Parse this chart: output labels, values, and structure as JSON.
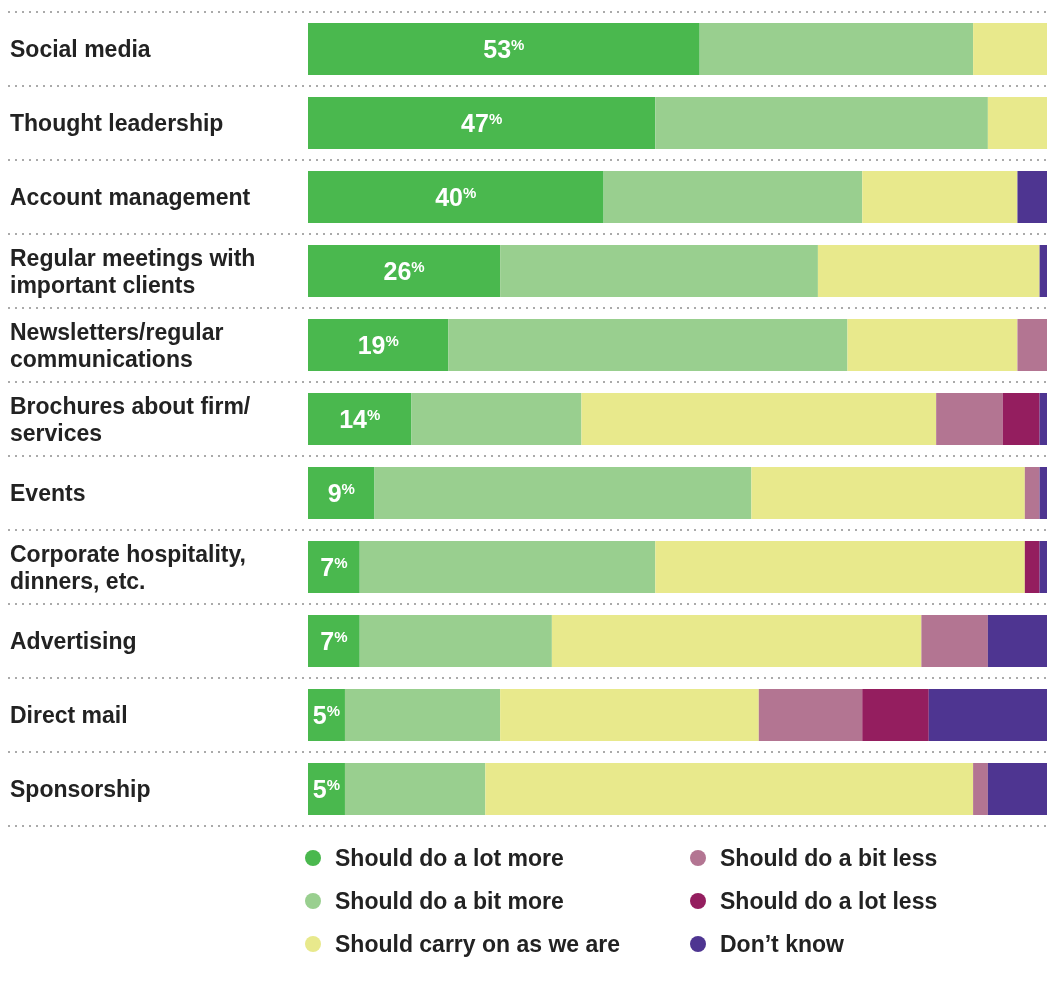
{
  "chart_data": {
    "type": "bar",
    "orientation": "horizontal",
    "stacked": true,
    "legend": "bottom",
    "xlim": [
      0,
      100
    ],
    "categories": [
      "Social media",
      "Thought leadership",
      "Account management",
      "Regular meetings with important clients",
      "Newsletters/regular communications",
      "Brochures about firm/ services",
      "Events",
      "Corporate hospitality, dinners, etc.",
      "Advertising",
      "Direct mail",
      "Sponsorship"
    ],
    "series": [
      {
        "name": "Should do a lot more",
        "color": "#4ab84e",
        "values": [
          53,
          47,
          40,
          26,
          19,
          14,
          9,
          7,
          7,
          5,
          5
        ],
        "value_labels": [
          "53$^{%}$",
          "47$^{%}$",
          "40$^{%}$",
          "26$^{%}$",
          "19$^{%}$",
          "14$^{%}$",
          "9$^{%}$",
          "7$^{%}$",
          "7$^{%}$",
          "5$^{%}$",
          "5$^{%}$"
        ]
      },
      {
        "name": "Should do a bit more",
        "color": "#99cf8f",
        "values": [
          37,
          45,
          35,
          43,
          54,
          23,
          51,
          40,
          26,
          21,
          19
        ]
      },
      {
        "name": "Should carry on as we are",
        "color": "#e8e98c",
        "values": [
          10,
          8,
          21,
          30,
          23,
          48,
          37,
          50,
          50,
          35,
          66
        ]
      },
      {
        "name": "Should do a bit less",
        "color": "#b37592",
        "values": [
          0,
          0,
          0,
          0,
          4,
          9,
          2,
          0,
          9,
          14,
          2
        ]
      },
      {
        "name": "Should do a lot less",
        "color": "#941e5f",
        "values": [
          0,
          0,
          0,
          0,
          0,
          5,
          0,
          2,
          0,
          9,
          0
        ]
      },
      {
        "name": "Don’t know",
        "color": "#4e3591",
        "values": [
          0,
          0,
          4,
          1,
          0,
          1,
          1,
          1,
          8,
          16,
          8
        ]
      }
    ]
  }
}
